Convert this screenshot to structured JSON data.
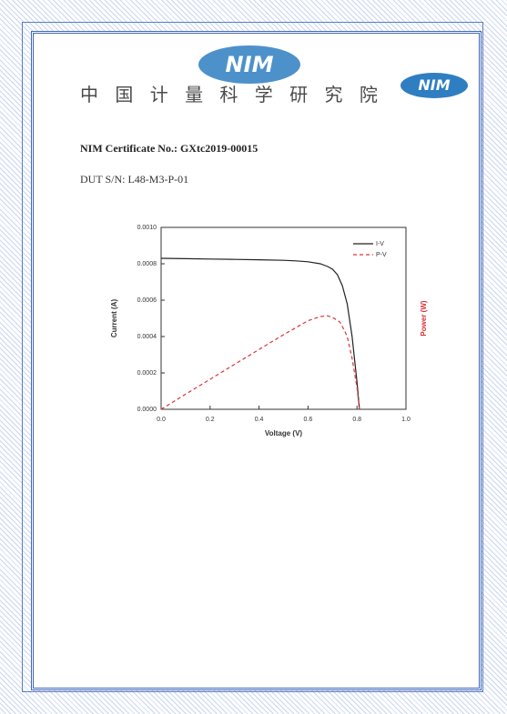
{
  "header": {
    "title": "中 国 计 量 科 学 研 究 院",
    "logo_text": "NIM"
  },
  "certificate": {
    "number_line": "NIM Certificate No.: GXtc2019-00015",
    "dut_line": "DUT S/N: L48-M3-P-01"
  },
  "chart_data": {
    "type": "line",
    "xlabel": "Voltage (V)",
    "ylabel": "Current (A)",
    "y2label": "Power (W)",
    "xlim": [
      0,
      1
    ],
    "xticks": [
      {
        "value": 0,
        "label": "0.0"
      },
      0.2,
      0.4,
      0.6,
      0.8,
      {
        "value": 1,
        "label": "1.0"
      }
    ],
    "ylim": [
      0,
      0.001
    ],
    "yticks": [
      {
        "value": 0,
        "label": "0.0000"
      },
      {
        "value": 0.0002,
        "label": "0.0002"
      },
      {
        "value": 0.0004,
        "label": "0.0004"
      },
      {
        "value": 0.0006,
        "label": "0.0006"
      },
      {
        "value": 0.0008,
        "label": "0.0008"
      },
      {
        "value": 0.001,
        "label": "0.0010"
      }
    ],
    "y2lim": [
      0,
      0.001
    ],
    "legend": "upper right",
    "series": [
      {
        "name": "I-V",
        "color": "#222222",
        "x": [
          0,
          0.1,
          0.2,
          0.3,
          0.4,
          0.5,
          0.55,
          0.6,
          0.65,
          0.68,
          0.7,
          0.72,
          0.74,
          0.76,
          0.78,
          0.8,
          0.81
        ],
        "values": [
          0.00083,
          0.000828,
          0.000826,
          0.000824,
          0.000822,
          0.000819,
          0.000816,
          0.000811,
          0.0008,
          0.000785,
          0.00077,
          0.00074,
          0.00068,
          0.00058,
          0.0004,
          0.00015,
          0
        ]
      },
      {
        "name": "P-V",
        "color": "#d9343a",
        "axis": "y2",
        "x": [
          0,
          0.1,
          0.2,
          0.3,
          0.4,
          0.5,
          0.6,
          0.65,
          0.68,
          0.7,
          0.73,
          0.75,
          0.76,
          0.78,
          0.8,
          0.81
        ],
        "values": [
          0,
          8.3e-05,
          0.000165,
          0.000247,
          0.000329,
          0.00041,
          0.000487,
          0.00051,
          0.000514,
          0.000505,
          0.00048,
          0.00043,
          0.0004,
          0.00028,
          0.00012,
          0
        ]
      }
    ]
  }
}
